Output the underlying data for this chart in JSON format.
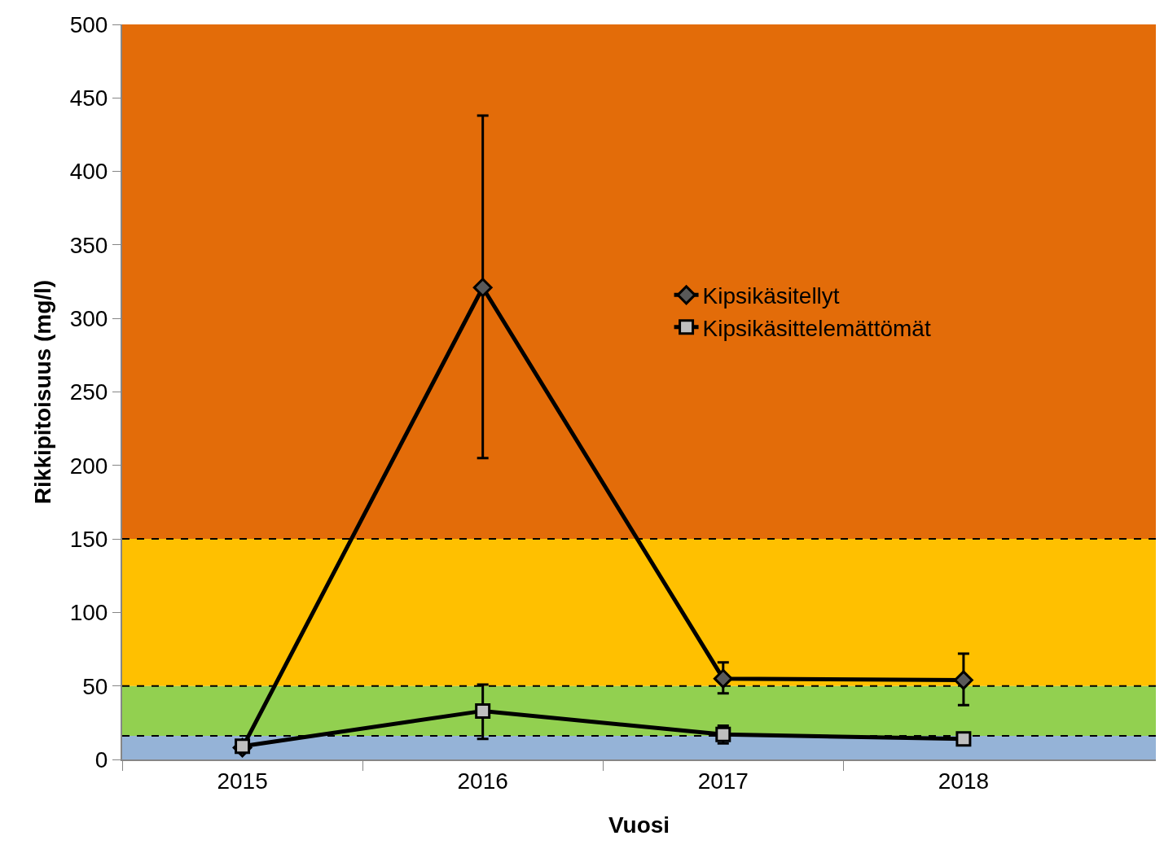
{
  "chart_data": {
    "type": "line",
    "xlabel": "Vuosi",
    "ylabel": "Rikkipitoisuus (mg/l)",
    "categories": [
      "2015",
      "2016",
      "2017",
      "2018"
    ],
    "series": [
      {
        "name": "Kipsikäsitellyt",
        "color": "#595959",
        "marker": "diamond",
        "values": [
          8,
          321,
          55,
          54
        ],
        "errors": [
          null,
          [
            205,
            438
          ],
          [
            45,
            66
          ],
          [
            37,
            72
          ]
        ]
      },
      {
        "name": "Kipsikäsittelemättömät",
        "color": "#bfbfbf",
        "marker": "square",
        "values": [
          9,
          33,
          17,
          14
        ],
        "errors": [
          null,
          [
            14,
            51
          ],
          [
            11,
            23
          ],
          null
        ]
      }
    ],
    "bands": [
      {
        "axis": "y",
        "from": 0,
        "to": 16,
        "color": "#95b3d7"
      },
      {
        "axis": "y",
        "from": 16,
        "to": 50,
        "color": "#92d050"
      },
      {
        "axis": "y",
        "from": 50,
        "to": 150,
        "color": "#ffc000"
      },
      {
        "axis": "y",
        "from": 150,
        "to": 500,
        "color": "#e36c09"
      }
    ],
    "ref_lines": [
      {
        "axis": "y",
        "value": 16,
        "line_style": "dashed",
        "color": "#000000"
      },
      {
        "axis": "y",
        "value": 50,
        "line_style": "dashed",
        "color": "#000000"
      },
      {
        "axis": "y",
        "value": 150,
        "line_style": "dashed",
        "color": "#000000"
      }
    ],
    "ylim": [
      0,
      500
    ],
    "yticks": [
      0,
      50,
      100,
      150,
      200,
      250,
      300,
      350,
      400,
      450,
      500
    ],
    "grid": false,
    "legend": "right",
    "line_style": "solid"
  }
}
